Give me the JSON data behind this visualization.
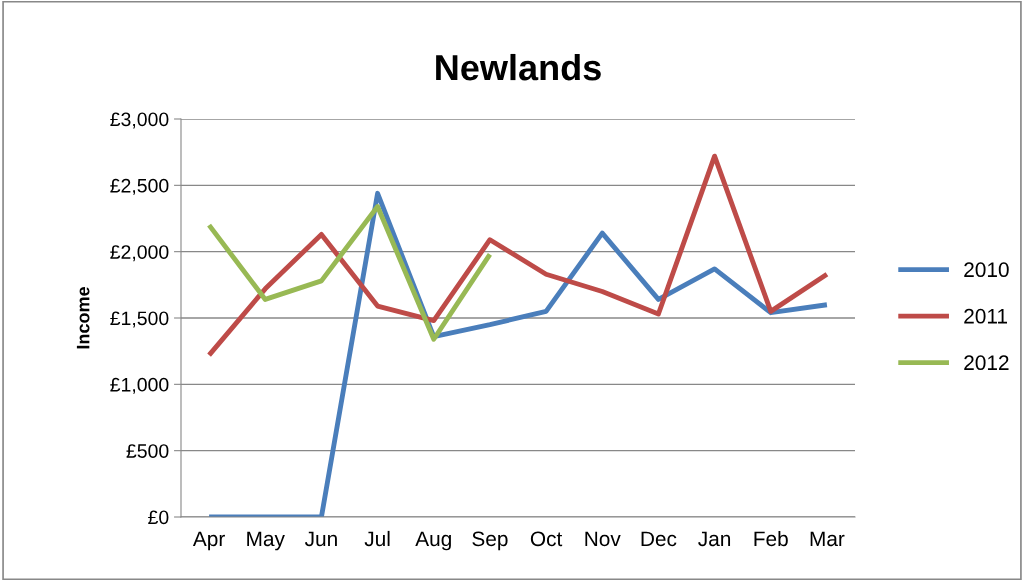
{
  "chart_data": {
    "type": "line",
    "title": "Newlands",
    "ylabel": "Income",
    "categories": [
      "Apr",
      "May",
      "Jun",
      "Jul",
      "Aug",
      "Sep",
      "Oct",
      "Nov",
      "Dec",
      "Jan",
      "Feb",
      "Mar"
    ],
    "series": [
      {
        "name": "2010",
        "color": "#4a7ebb",
        "values": [
          0,
          0,
          0,
          2440,
          1360,
          1450,
          1550,
          2140,
          1640,
          1870,
          1540,
          1600
        ]
      },
      {
        "name": "2011",
        "color": "#be4b48",
        "values": [
          1220,
          1720,
          2130,
          1590,
          1480,
          2090,
          1830,
          1700,
          1530,
          2720,
          1550,
          1830
        ]
      },
      {
        "name": "2012",
        "color": "#98b954",
        "values": [
          2200,
          1640,
          1780,
          2340,
          1340,
          1980,
          null,
          null,
          null,
          null,
          null,
          null
        ]
      }
    ],
    "ylim": [
      0,
      3000
    ],
    "yticks": [
      {
        "value": 0,
        "label": "£0"
      },
      {
        "value": 500,
        "label": "£500"
      },
      {
        "value": 1000,
        "label": "£1,000"
      },
      {
        "value": 1500,
        "label": "£1,500"
      },
      {
        "value": 2000,
        "label": "£2,000"
      },
      {
        "value": 2500,
        "label": "£2,500"
      },
      {
        "value": 3000,
        "label": "£3,000"
      }
    ],
    "grid": "y",
    "legend": "right",
    "marker": "none",
    "line_style": "solid"
  }
}
